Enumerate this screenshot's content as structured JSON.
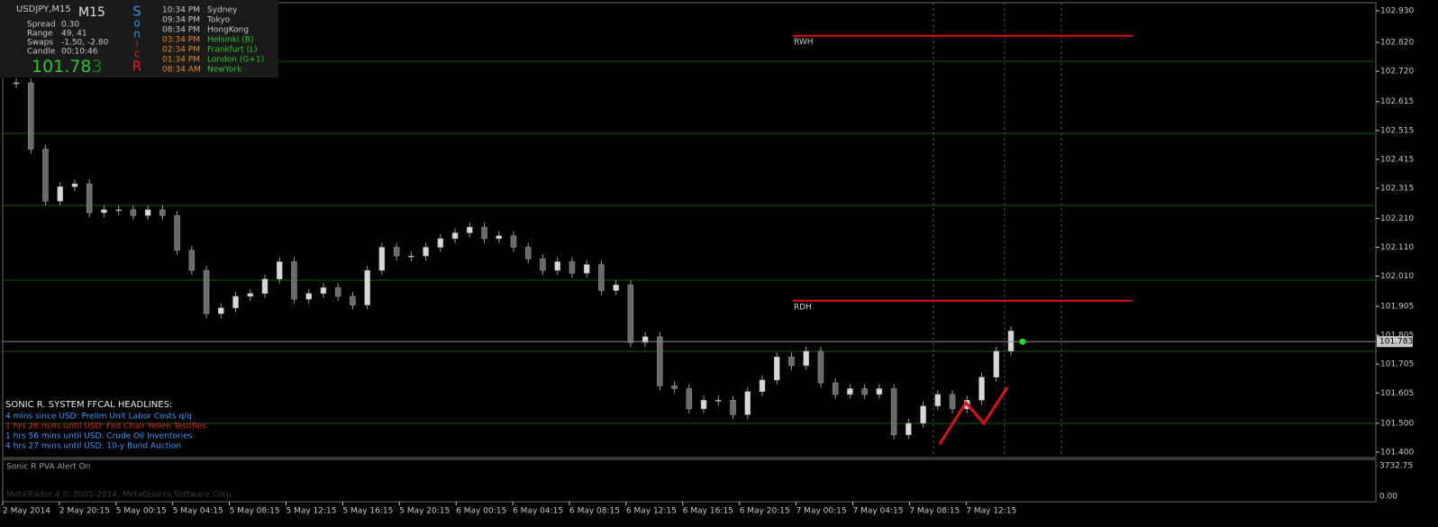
{
  "info_panel": {
    "symbol": "USDJPY,M15",
    "timeframe": "M15",
    "rows": [
      {
        "label": "Spread",
        "value": "0.30"
      },
      {
        "label": "Range",
        "value": "49, 41"
      },
      {
        "label": "Swaps",
        "value": "-1.50, -2.80"
      },
      {
        "label": "Candle",
        "value": "00:10:46"
      }
    ],
    "bid": "101.78",
    "bid_last_digit": "3",
    "logo_letters": [
      "S",
      "o",
      "n",
      "i",
      "c",
      "R"
    ],
    "sessions": [
      {
        "time": "10:34 PM",
        "city": "Sydney"
      },
      {
        "time": "09:34 PM",
        "city": "Tokyo"
      },
      {
        "time": "08:34 PM",
        "city": "HongKong"
      },
      {
        "time": "03:34 PM",
        "city": "Helsinki  (B)"
      },
      {
        "time": "02:34 PM",
        "city": "Frankfurt  (L)"
      },
      {
        "time": "01:34 PM",
        "city": "London  (G+1)"
      },
      {
        "time": "08:34 AM",
        "city": "NewYork"
      }
    ]
  },
  "price_axis": {
    "ylim": [
      101.381,
      102.967
    ],
    "yticks": [
      {
        "value": 102.93,
        "label": "102.930"
      },
      {
        "value": 102.82,
        "label": "102.820"
      },
      {
        "value": 102.72,
        "label": "102.720"
      },
      102.615,
      102.515,
      102.415,
      102.315,
      {
        "value": 102.21,
        "label": "102.210"
      },
      {
        "value": 102.11,
        "label": "102.110"
      },
      {
        "value": 102.01,
        "label": "102.010"
      },
      101.905,
      101.805,
      101.705,
      101.605,
      {
        "value": 101.5,
        "label": "101.500"
      },
      {
        "value": 101.4,
        "label": "101.400"
      }
    ],
    "current_price": 101.783
  },
  "candle_closes": [
    102.68,
    102.45,
    102.27,
    102.32,
    102.33,
    102.23,
    102.24,
    102.24,
    102.22,
    102.24,
    102.22,
    102.1,
    102.03,
    101.88,
    101.9,
    101.94,
    101.95,
    102.0,
    102.06,
    101.93,
    101.95,
    101.97,
    101.94,
    101.91,
    102.03,
    102.11,
    102.08,
    102.08,
    102.11,
    102.14,
    102.16,
    102.18,
    102.14,
    102.15,
    102.11,
    102.07,
    102.03,
    102.06,
    102.02,
    102.05,
    101.96,
    101.98,
    101.78,
    101.8,
    101.63,
    101.62,
    101.55,
    101.58,
    101.58,
    101.53,
    101.61,
    101.65,
    101.73,
    101.7,
    101.75,
    101.64,
    101.6,
    101.62,
    101.6,
    101.62,
    101.46,
    101.5,
    101.56,
    101.6,
    101.55,
    101.58,
    101.66,
    101.75,
    101.82
  ],
  "levels": [
    {
      "label": "RWH",
      "value": 102.843
    },
    {
      "label": "RDH",
      "value": 101.925
    }
  ],
  "headlines": {
    "title": "SONIC R. SYSTEM  FFCAL HEADLINES:",
    "items": [
      "4 mins since USD: Prelim Unit Labor Costs q/q",
      "1 hrs 26 mins until USD: Fed Chair Yellen Testifies",
      "1 hrs 56 mins until USD: Crude Oil Inventories",
      "4 hrs 27 mins until USD: 10-y Bond Auction"
    ]
  },
  "volume_pane": {
    "label": "Sonic R PVA   Alert On",
    "max_label": "3732.75",
    "min_label": "0.00",
    "watermark": "MetaTrader 4 © 2001-2014, MetaQuotes Software Corp."
  },
  "time_axis": [
    "2 May 2014",
    "2 May 20:15",
    "5 May 00:15",
    "5 May 04:15",
    "5 May 08:15",
    "5 May 12:15",
    "5 May 16:15",
    "5 May 20:15",
    "6 May 00:15",
    "6 May 04:15",
    "6 May 08:15",
    "6 May 12:15",
    "6 May 16:15",
    "6 May 20:15",
    "7 May 00:15",
    "7 May 04:15",
    "7 May 08:15",
    "7 May 12:15"
  ]
}
